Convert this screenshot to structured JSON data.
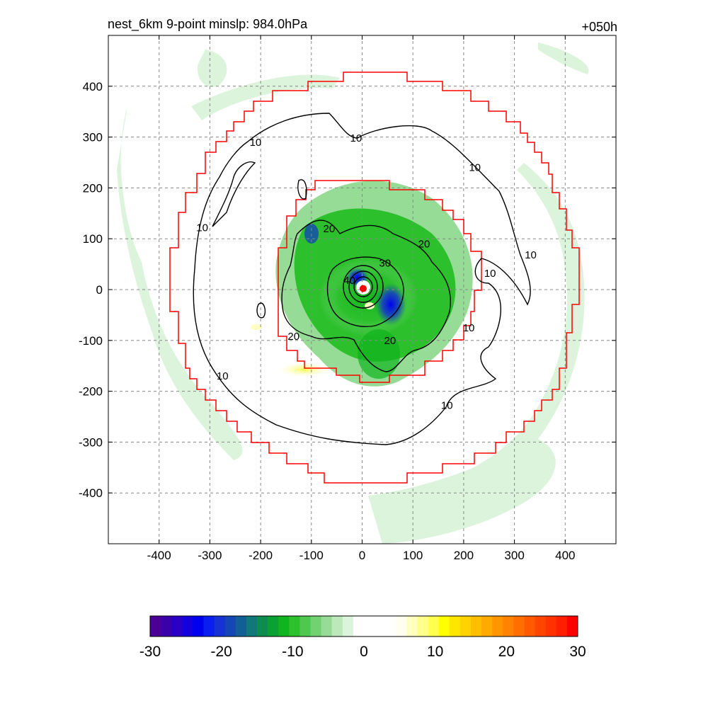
{
  "chart_data": {
    "type": "heatmap",
    "title": "nest_6km  9-point minslp: 984.0hPa",
    "time_label": "+050h",
    "xlabel": "",
    "ylabel": "",
    "xlim": [
      -500,
      500
    ],
    "ylim": [
      -500,
      500
    ],
    "x_ticks": [
      -400,
      -300,
      -200,
      -100,
      0,
      100,
      200,
      300,
      400
    ],
    "y_ticks": [
      400,
      300,
      200,
      100,
      0,
      -100,
      -200,
      -300,
      -400
    ],
    "grid": true,
    "colorbar": {
      "min": -30,
      "max": 30,
      "tick_values": [
        -30,
        -20,
        -10,
        0,
        10,
        20,
        30
      ],
      "tick_labels": [
        "-30",
        "-20",
        "-10",
        "0",
        "10",
        "20",
        "30"
      ],
      "colors": [
        "#4b0095",
        "#3a00aa",
        "#2a00c4",
        "#1400dc",
        "#0000f0",
        "#0a1ef0",
        "#1532d2",
        "#1446b4",
        "#125e96",
        "#107878",
        "#0e8c50",
        "#0aa032",
        "#10b41e",
        "#2cc02c",
        "#4ec84e",
        "#72d272",
        "#96dc96",
        "#bce8bc",
        "#dcf4dc",
        "#ffffff",
        "#ffffff",
        "#ffffff",
        "#ffffff",
        "#fffff0",
        "#ffffc0",
        "#ffff8c",
        "#ffff50",
        "#ffff00",
        "#ffe600",
        "#ffd200",
        "#ffbe00",
        "#ffaa00",
        "#ff9600",
        "#ff8200",
        "#ff6e00",
        "#ff5a00",
        "#ff4600",
        "#ff3200",
        "#ff1e00",
        "#ff0000"
      ]
    },
    "contour_levels": [
      10,
      20,
      30,
      40
    ],
    "contour_labels": [
      {
        "text": "10",
        "x": -210,
        "y": 290
      },
      {
        "text": "10",
        "x": -12,
        "y": 298
      },
      {
        "text": "10",
        "x": 222,
        "y": 240
      },
      {
        "text": "10",
        "x": -315,
        "y": 122
      },
      {
        "text": "10",
        "x": 332,
        "y": 68
      },
      {
        "text": "10",
        "x": 252,
        "y": 32
      },
      {
        "text": "10",
        "x": 210,
        "y": -75
      },
      {
        "text": "10",
        "x": -275,
        "y": -170
      },
      {
        "text": "10",
        "x": 167,
        "y": -228
      },
      {
        "text": "20",
        "x": -65,
        "y": 120
      },
      {
        "text": "20",
        "x": 122,
        "y": 90
      },
      {
        "text": "20",
        "x": -135,
        "y": -92
      },
      {
        "text": "20",
        "x": 55,
        "y": -100
      },
      {
        "text": "30",
        "x": 45,
        "y": 52
      },
      {
        "text": "40",
        "x": -25,
        "y": 18
      }
    ],
    "inner_box_halfwidth": 150,
    "outer_box_radius": 425,
    "storm_center": {
      "x": 2,
      "y": 2
    }
  }
}
